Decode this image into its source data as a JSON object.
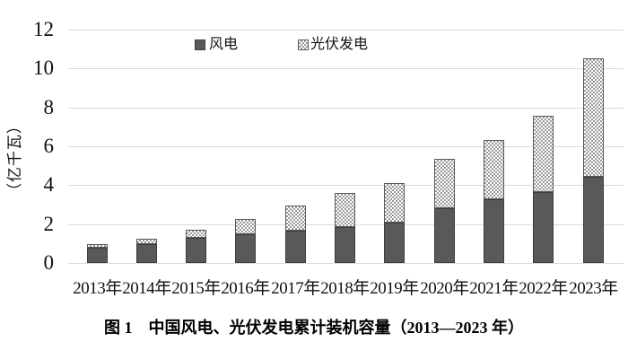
{
  "figure": {
    "caption": "图 1　中国风电、光伏发电累计装机容量（2013—2023 年）"
  },
  "chart_data": {
    "type": "bar",
    "stacked": true,
    "title": "",
    "xlabel": "",
    "ylabel": "（亿千瓦）",
    "ylim": [
      0,
      12
    ],
    "yticks": [
      0,
      2,
      4,
      6,
      8,
      10,
      12
    ],
    "grid": "horizontal",
    "legend_position": "top-center",
    "categories": [
      "2013年",
      "2014年",
      "2015年",
      "2016年",
      "2017年",
      "2018年",
      "2019年",
      "2020年",
      "2021年",
      "2022年",
      "2023年"
    ],
    "series": [
      {
        "name": "风电",
        "swatch": "solid-dark-square",
        "color": "#595959",
        "values": [
          0.77,
          0.96,
          1.29,
          1.49,
          1.64,
          1.84,
          2.1,
          2.81,
          3.28,
          3.65,
          4.41
        ]
      },
      {
        "name": "光伏发电",
        "swatch": "checker-pattern-square",
        "color": "#9b9b9b",
        "values": [
          0.19,
          0.28,
          0.43,
          0.77,
          1.3,
          1.74,
          2.04,
          2.53,
          3.06,
          3.93,
          6.09
        ]
      }
    ],
    "colors": {
      "gridline": "#d9d9d9",
      "wind_fill": "#595959",
      "pv_pattern": "#9b9b9b",
      "text": "#111111",
      "background": "#ffffff"
    }
  }
}
